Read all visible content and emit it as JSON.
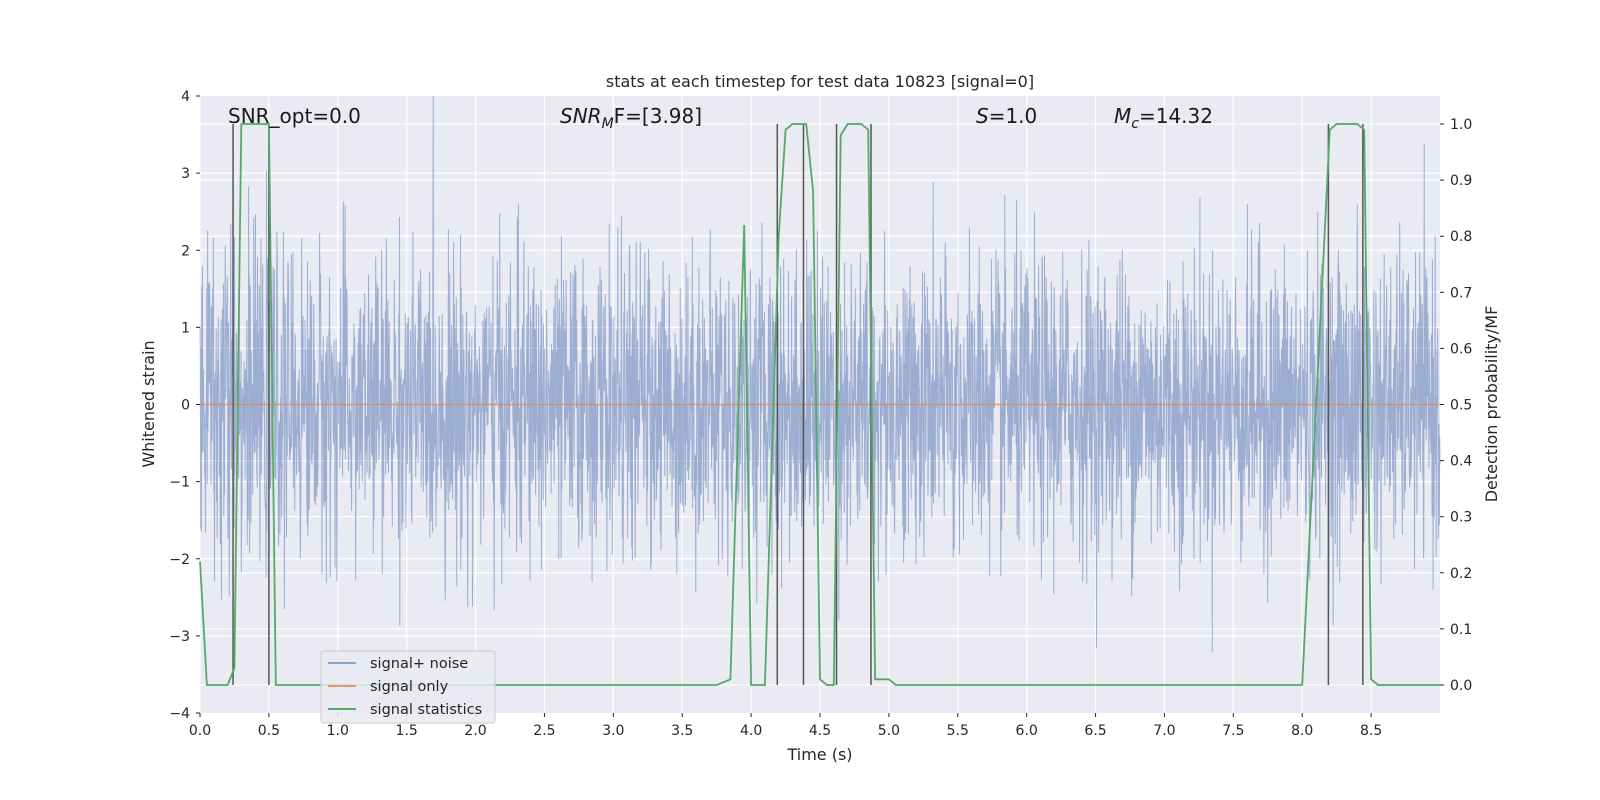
{
  "chart_data": {
    "type": "line",
    "title": "stats at each timestep for test data 10823 [signal=0]",
    "xlabel": "Time (s)",
    "ylabel": "Whitened strain",
    "ylabel_right": "Detection probability/MF",
    "xlim": [
      0.0,
      9.0
    ],
    "ylim": [
      -4.0,
      4.0
    ],
    "ylim_right": [
      -0.05,
      1.05
    ],
    "x_ticks": [
      "0.0",
      "0.5",
      "1.0",
      "1.5",
      "2.0",
      "2.5",
      "3.0",
      "3.5",
      "4.0",
      "4.5",
      "5.0",
      "5.5",
      "6.0",
      "6.5",
      "7.0",
      "7.5",
      "8.0",
      "8.5"
    ],
    "y_ticks": [
      "4",
      "3",
      "2",
      "1",
      "0",
      "−1",
      "−2",
      "−3",
      "−4"
    ],
    "y_ticks_right": [
      "1.0",
      "0.9",
      "0.8",
      "0.7",
      "0.6",
      "0.5",
      "0.4",
      "0.3",
      "0.2",
      "0.1",
      "0.0"
    ],
    "annotations": {
      "snr_opt": "SNR_opt=0.0",
      "snr_mf_sym": "SNR",
      "snr_mf_sub": "M",
      "snr_mf_rest": "F=[3.98]",
      "s_sym": "S",
      "s_rest": "=1.0",
      "mc_sym": "M",
      "mc_sub": "c",
      "mc_rest": "=14.32"
    },
    "legend": [
      "signal+ noise",
      "signal only",
      "signal statistics"
    ],
    "legend_location": "lower-left",
    "series": [
      {
        "name": "signal+ noise",
        "color": "#4c72b0",
        "note": "whitened noise, sampled at ~4096 Hz, envelope approx ±2",
        "summary": {
          "x_range": [
            0.0,
            9.0
          ],
          "min": -3.6,
          "max": 4.0
        }
      },
      {
        "name": "signal only",
        "color": "#dd8452",
        "x": [
          0.0,
          9.0
        ],
        "y": [
          0.0,
          0.0
        ]
      },
      {
        "name": "signal statistics",
        "color": "#55a868",
        "axis": "right",
        "x": [
          0.0,
          0.05,
          0.1,
          0.15,
          0.2,
          0.25,
          0.3,
          0.35,
          0.4,
          0.45,
          0.5,
          0.55,
          0.6,
          0.7,
          1.0,
          2.0,
          3.0,
          3.5,
          3.75,
          3.85,
          3.95,
          4.0,
          4.1,
          4.2,
          4.25,
          4.3,
          4.35,
          4.4,
          4.45,
          4.5,
          4.55,
          4.6,
          4.65,
          4.7,
          4.75,
          4.8,
          4.85,
          4.9,
          4.95,
          5.0,
          5.05,
          5.2,
          6.0,
          6.1,
          6.15,
          6.5,
          7.0,
          8.0,
          8.2,
          8.25,
          8.3,
          8.35,
          8.4,
          8.45,
          8.5,
          8.55,
          8.6,
          9.0
        ],
        "y": [
          0.22,
          0.0,
          0.0,
          0.0,
          0.0,
          0.03,
          1.0,
          1.0,
          1.0,
          1.0,
          1.0,
          0.0,
          0.0,
          0.0,
          0.0,
          0.0,
          0.0,
          0.0,
          0.0,
          0.01,
          0.82,
          0.0,
          0.0,
          0.8,
          0.99,
          1.0,
          1.0,
          1.0,
          0.88,
          0.01,
          0.0,
          0.0,
          0.98,
          1.0,
          1.0,
          1.0,
          0.99,
          0.01,
          0.01,
          0.01,
          0.0,
          0.0,
          0.0,
          0.0,
          0.0,
          0.0,
          0.0,
          0.0,
          0.99,
          1.0,
          1.0,
          1.0,
          1.0,
          0.99,
          0.01,
          0.0,
          0.0,
          0.0
        ]
      }
    ],
    "vertical_lines": {
      "color": "#555555",
      "x": [
        0.24,
        0.5,
        4.19,
        4.38,
        4.62,
        4.87,
        8.19,
        8.44
      ]
    }
  }
}
